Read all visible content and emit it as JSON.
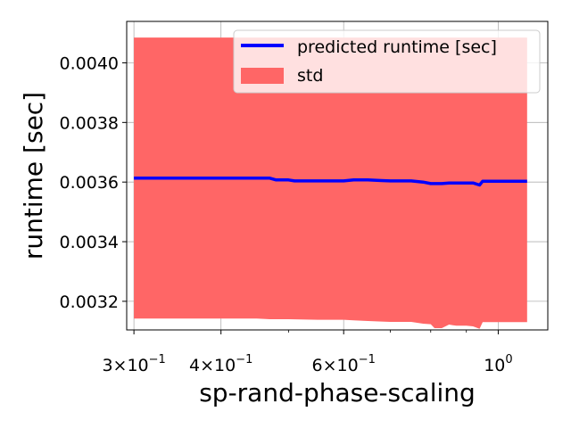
{
  "chart_data": {
    "type": "line",
    "xlabel": "sp-rand-phase-scaling",
    "ylabel": "runtime [sec]",
    "x_scale": "log",
    "xlim": [
      0.2929,
      1.178
    ],
    "ylim": [
      0.003104,
      0.004139
    ],
    "grid": true,
    "legend_position": "top-right",
    "x_ticks": [
      {
        "value": 0.3,
        "base": "3×10",
        "exp": "−1"
      },
      {
        "value": 0.4,
        "base": "4×10",
        "exp": "−1"
      },
      {
        "value": 0.6,
        "base": "6×10",
        "exp": "−1"
      },
      {
        "value": 1.0,
        "base": "10",
        "exp": "0"
      }
    ],
    "y_ticks": [
      {
        "value": 0.0032,
        "label": "0.0032"
      },
      {
        "value": 0.0034,
        "label": "0.0034"
      },
      {
        "value": 0.0036,
        "label": "0.0036"
      },
      {
        "value": 0.0038,
        "label": "0.0038"
      },
      {
        "value": 0.004,
        "label": "0.0040"
      }
    ],
    "series": [
      {
        "name": "predicted runtime [sec]",
        "type": "line",
        "color": "#0000ff",
        "x": [
          0.3,
          0.35,
          0.4,
          0.45,
          0.47,
          0.48,
          0.5,
          0.51,
          0.55,
          0.6,
          0.62,
          0.65,
          0.68,
          0.7,
          0.75,
          0.78,
          0.8,
          0.83,
          0.85,
          0.88,
          0.92,
          0.94,
          0.95,
          1.0,
          1.1
        ],
        "y": [
          0.003613,
          0.003613,
          0.003613,
          0.003613,
          0.003613,
          0.003607,
          0.003607,
          0.003604,
          0.003604,
          0.003604,
          0.003607,
          0.003607,
          0.003605,
          0.003604,
          0.003604,
          0.0036,
          0.003595,
          0.003595,
          0.003597,
          0.003597,
          0.003597,
          0.00359,
          0.003603,
          0.003603,
          0.003603
        ]
      },
      {
        "name": "std",
        "type": "band",
        "color": "#ff6666",
        "x": [
          0.3,
          0.35,
          0.4,
          0.45,
          0.47,
          0.5,
          0.55,
          0.6,
          0.62,
          0.65,
          0.68,
          0.7,
          0.75,
          0.78,
          0.8,
          0.81,
          0.83,
          0.85,
          0.87,
          0.9,
          0.92,
          0.94,
          0.95,
          1.0,
          1.1
        ],
        "upper": [
          0.004085,
          0.004085,
          0.004085,
          0.004085,
          0.004085,
          0.004085,
          0.004085,
          0.004085,
          0.004085,
          0.004085,
          0.004085,
          0.004085,
          0.004085,
          0.004085,
          0.004085,
          0.004085,
          0.004085,
          0.004085,
          0.004085,
          0.004085,
          0.004085,
          0.004085,
          0.004085,
          0.004085,
          0.004085
        ],
        "lower": [
          0.003142,
          0.003142,
          0.003142,
          0.003142,
          0.00314,
          0.00314,
          0.003138,
          0.003138,
          0.003136,
          0.003134,
          0.003132,
          0.003131,
          0.003131,
          0.003125,
          0.003123,
          0.00311,
          0.00311,
          0.003122,
          0.003118,
          0.003118,
          0.003116,
          0.003108,
          0.00313,
          0.00313,
          0.00313
        ]
      }
    ]
  }
}
